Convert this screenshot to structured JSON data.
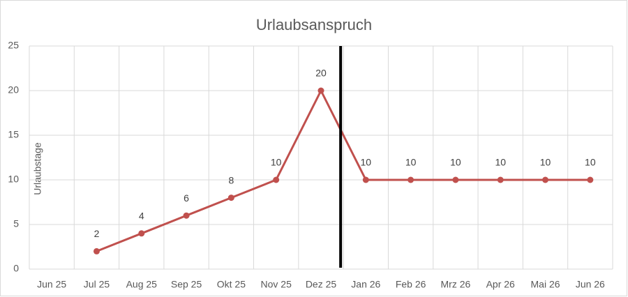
{
  "chart_data": {
    "type": "line",
    "title": "Urlaubsanspruch",
    "y_label": "Urlaubstage",
    "categories": [
      "Jun 25",
      "Jul 25",
      "Aug 25",
      "Sep 25",
      "Okt 25",
      "Nov 25",
      "Dez 25",
      "Jan 26",
      "Feb 26",
      "Mrz 26",
      "Apr 26",
      "Mai 26",
      "Jun 26"
    ],
    "values": [
      null,
      2,
      4,
      6,
      8,
      10,
      20,
      10,
      10,
      10,
      10,
      10,
      10
    ],
    "color": "#c0504d",
    "ylim": [
      0,
      25
    ],
    "yticks": [
      0,
      5,
      10,
      15,
      20,
      25
    ],
    "grid": true
  }
}
